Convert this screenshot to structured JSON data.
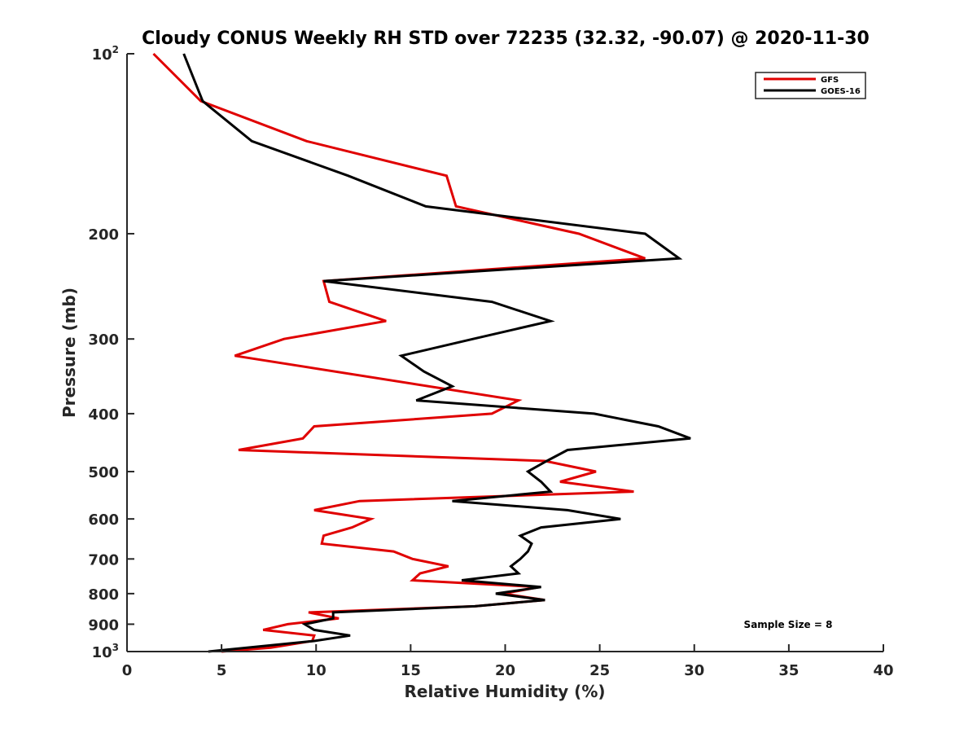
{
  "chart_data": {
    "type": "line",
    "title": "Cloudy CONUS Weekly RH STD over 72235 (32.32, -90.07) @ 2020-11-30",
    "xlabel": "Relative Humidity (%)",
    "ylabel": "Pressure (mb)",
    "xlim": [
      0,
      40
    ],
    "ylim": [
      1000,
      100
    ],
    "yscale": "log",
    "y_reversed": true,
    "grid": false,
    "x_ticks": [
      0,
      5,
      10,
      15,
      20,
      25,
      30,
      35,
      40
    ],
    "x_tick_labels": [
      "0",
      "5",
      "10",
      "15",
      "20",
      "25",
      "30",
      "35",
      "40"
    ],
    "y_ticks": [
      100,
      200,
      300,
      400,
      500,
      600,
      700,
      800,
      900,
      1000
    ],
    "y_tick_labels": [
      {
        "base": "10",
        "sup": "2"
      },
      {
        "base": "200",
        "sup": ""
      },
      {
        "base": "300",
        "sup": ""
      },
      {
        "base": "400",
        "sup": ""
      },
      {
        "base": "500",
        "sup": ""
      },
      {
        "base": "600",
        "sup": ""
      },
      {
        "base": "700",
        "sup": ""
      },
      {
        "base": "800",
        "sup": ""
      },
      {
        "base": "900",
        "sup": ""
      },
      {
        "base": "10",
        "sup": "3"
      }
    ],
    "legend": {
      "placement": "top-right",
      "entries": [
        "GFS",
        "GOES-16"
      ]
    },
    "annotations": [
      "Sample Size = 8"
    ],
    "series": [
      {
        "name": "GFS",
        "color": "#e00000",
        "points": [
          [
            1.4,
            100
          ],
          [
            3.9,
            120
          ],
          [
            9.5,
            140
          ],
          [
            16.9,
            160
          ],
          [
            17.4,
            180
          ],
          [
            23.9,
            200
          ],
          [
            27.4,
            220
          ],
          [
            10.4,
            240
          ],
          [
            10.7,
            260
          ],
          [
            13.7,
            280
          ],
          [
            8.3,
            300
          ],
          [
            5.7,
            320
          ],
          [
            20.7,
            380
          ],
          [
            19.3,
            400
          ],
          [
            9.9,
            420
          ],
          [
            9.3,
            440
          ],
          [
            5.9,
            460
          ],
          [
            22.1,
            480
          ],
          [
            24.8,
            500
          ],
          [
            22.9,
            520
          ],
          [
            26.8,
            540
          ],
          [
            12.3,
            560
          ],
          [
            9.9,
            580
          ],
          [
            12.9,
            600
          ],
          [
            11.9,
            620
          ],
          [
            10.4,
            640
          ],
          [
            10.3,
            660
          ],
          [
            14.1,
            680
          ],
          [
            15.1,
            700
          ],
          [
            17.0,
            720
          ],
          [
            15.5,
            740
          ],
          [
            15.1,
            760
          ],
          [
            21.8,
            780
          ],
          [
            19.9,
            800
          ],
          [
            22.1,
            820
          ],
          [
            18.4,
            840
          ],
          [
            9.6,
            860
          ],
          [
            11.2,
            880
          ],
          [
            8.5,
            900
          ],
          [
            7.2,
            920
          ],
          [
            9.9,
            940
          ],
          [
            9.8,
            960
          ],
          [
            7.6,
            985
          ],
          [
            5.0,
            1000
          ]
        ]
      },
      {
        "name": "GOES-16",
        "color": "#000000",
        "points": [
          [
            3.0,
            100
          ],
          [
            4.0,
            120
          ],
          [
            6.6,
            140
          ],
          [
            11.7,
            160
          ],
          [
            15.8,
            180
          ],
          [
            27.4,
            200
          ],
          [
            29.2,
            220
          ],
          [
            10.4,
            240
          ],
          [
            19.3,
            260
          ],
          [
            22.4,
            280
          ],
          [
            18.3,
            300
          ],
          [
            14.5,
            320
          ],
          [
            15.7,
            340
          ],
          [
            17.2,
            360
          ],
          [
            15.3,
            380
          ],
          [
            24.7,
            400
          ],
          [
            28.1,
            420
          ],
          [
            29.8,
            440
          ],
          [
            23.3,
            460
          ],
          [
            22.2,
            480
          ],
          [
            21.2,
            500
          ],
          [
            21.9,
            520
          ],
          [
            22.4,
            540
          ],
          [
            17.2,
            560
          ],
          [
            23.3,
            580
          ],
          [
            26.1,
            600
          ],
          [
            21.9,
            620
          ],
          [
            20.8,
            640
          ],
          [
            21.4,
            660
          ],
          [
            21.2,
            680
          ],
          [
            20.8,
            700
          ],
          [
            20.3,
            720
          ],
          [
            20.7,
            740
          ],
          [
            17.7,
            760
          ],
          [
            21.9,
            780
          ],
          [
            19.5,
            800
          ],
          [
            22.1,
            820
          ],
          [
            18.4,
            840
          ],
          [
            10.9,
            860
          ],
          [
            10.9,
            880
          ],
          [
            9.4,
            900
          ],
          [
            9.9,
            920
          ],
          [
            11.8,
            940
          ],
          [
            9.9,
            960
          ],
          [
            4.3,
            1000
          ]
        ]
      }
    ]
  }
}
